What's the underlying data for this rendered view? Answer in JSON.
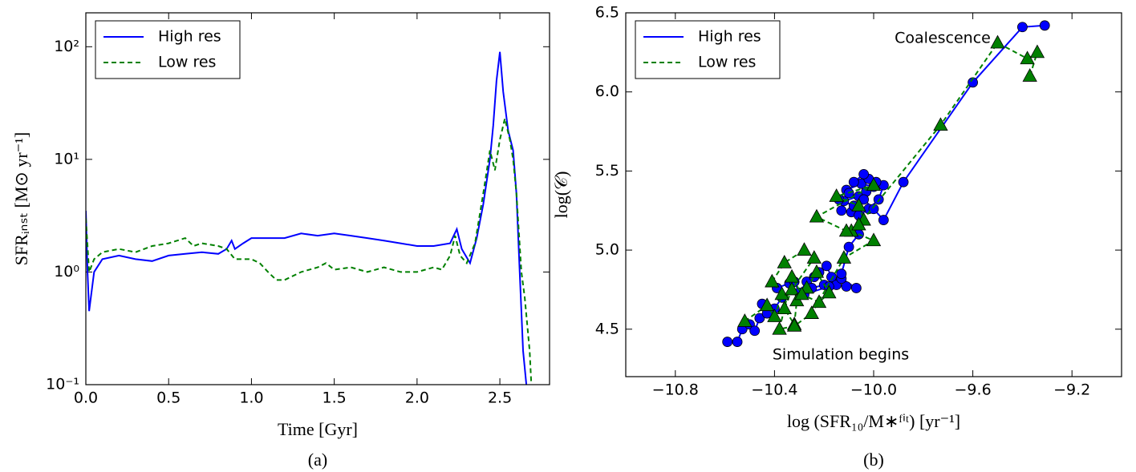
{
  "chart_data": [
    {
      "type": "line",
      "log_y": true,
      "legend": "upper left",
      "caption": "(a)",
      "xlabel": "Time [Gyr]",
      "ylabel": "SFRᵢₙₛₜ [M⊙ yr⁻¹]",
      "xlim": [
        0,
        2.8
      ],
      "ylim": [
        0.1,
        200
      ],
      "xticks": [
        {
          "value": 0,
          "label": "0.0"
        },
        0.5,
        {
          "value": 1,
          "label": "1.0"
        },
        1.5,
        {
          "value": 2,
          "label": "2.0"
        },
        2.5
      ],
      "yticks": [
        {
          "value": 0.1,
          "label": "10⁻¹"
        },
        {
          "value": 1,
          "label": "10⁰"
        },
        {
          "value": 10,
          "label": "10¹"
        },
        {
          "value": 100,
          "label": "10²"
        }
      ],
      "series": [
        {
          "name": "High res",
          "color": "#0000ff",
          "dash": false,
          "x": [
            0.0,
            0.01,
            0.02,
            0.05,
            0.1,
            0.2,
            0.3,
            0.4,
            0.5,
            0.6,
            0.7,
            0.8,
            0.85,
            0.88,
            0.9,
            0.95,
            1.0,
            1.1,
            1.2,
            1.3,
            1.4,
            1.5,
            1.6,
            1.7,
            1.8,
            1.9,
            2.0,
            2.1,
            2.2,
            2.24,
            2.27,
            2.32,
            2.36,
            2.4,
            2.44,
            2.46,
            2.48,
            2.5,
            2.52,
            2.55,
            2.58,
            2.6,
            2.62,
            2.64,
            2.66
          ],
          "values": [
            3.5,
            1.0,
            0.45,
            1.0,
            1.3,
            1.4,
            1.3,
            1.25,
            1.4,
            1.45,
            1.5,
            1.45,
            1.6,
            1.9,
            1.6,
            1.8,
            2.0,
            2.0,
            2.0,
            2.2,
            2.1,
            2.2,
            2.1,
            2.0,
            1.9,
            1.8,
            1.7,
            1.7,
            1.8,
            2.4,
            1.6,
            1.2,
            2.0,
            4.0,
            10,
            20,
            50,
            90,
            40,
            18,
            12,
            5,
            1.0,
            0.2,
            0.1
          ]
        },
        {
          "name": "Low res",
          "color": "#008000",
          "dash": true,
          "x": [
            0.0,
            0.02,
            0.05,
            0.1,
            0.2,
            0.3,
            0.4,
            0.5,
            0.6,
            0.65,
            0.7,
            0.8,
            0.85,
            0.9,
            1.0,
            1.05,
            1.1,
            1.15,
            1.2,
            1.3,
            1.4,
            1.45,
            1.5,
            1.6,
            1.7,
            1.8,
            1.9,
            2.0,
            2.1,
            2.15,
            2.2,
            2.23,
            2.26,
            2.3,
            2.35,
            2.4,
            2.44,
            2.47,
            2.5,
            2.53,
            2.56,
            2.58,
            2.6,
            2.63,
            2.65,
            2.68,
            2.69
          ],
          "values": [
            3.0,
            1.0,
            1.3,
            1.5,
            1.6,
            1.5,
            1.7,
            1.8,
            2.0,
            1.7,
            1.8,
            1.7,
            1.6,
            1.3,
            1.3,
            1.2,
            1.0,
            0.85,
            0.85,
            1.0,
            1.1,
            1.2,
            1.05,
            1.1,
            1.0,
            1.1,
            1.0,
            1.0,
            1.1,
            1.05,
            1.4,
            2.1,
            1.4,
            1.2,
            1.8,
            5,
            12,
            8,
            15,
            23,
            15,
            10,
            5,
            1.0,
            0.6,
            0.2,
            0.1
          ]
        }
      ]
    },
    {
      "type": "line",
      "log_y": false,
      "legend": "upper left",
      "caption": "(b)",
      "xlabel": "log (SFR₁₀/M∗ᶠⁱᵗ) [yr⁻¹]",
      "ylabel": "log(𝒞)",
      "annotations": [
        "Coalescence",
        "Simulation begins"
      ],
      "xlim": [
        -11.0,
        -9.0
      ],
      "ylim": [
        4.2,
        6.5
      ],
      "xticks": [
        {
          "value": -10.8,
          "label": "−10.8"
        },
        {
          "value": -10.4,
          "label": "−10.4"
        },
        {
          "value": -10.0,
          "label": "−10.0"
        },
        {
          "value": -9.6,
          "label": "−9.6"
        },
        {
          "value": -9.2,
          "label": "−9.2"
        }
      ],
      "yticks": [
        4.5,
        {
          "value": 5,
          "label": "5.0"
        },
        5.5,
        {
          "value": 6,
          "label": "6.0"
        },
        6.5
      ],
      "series": [
        {
          "name": "High res",
          "color": "#0000ff",
          "dash": false,
          "marker": "circle",
          "x": [
            -10.59,
            -10.55,
            -10.53,
            -10.5,
            -10.48,
            -10.46,
            -10.43,
            -10.45,
            -10.4,
            -10.37,
            -10.39,
            -10.34,
            -10.32,
            -10.3,
            -10.27,
            -10.24,
            -10.22,
            -10.19,
            -10.17,
            -10.15,
            -10.11,
            -10.07,
            -10.13,
            -10.2,
            -10.25,
            -10.28,
            -10.18,
            -10.13,
            -10.1,
            -10.06,
            -10.05,
            -10.09,
            -10.13,
            -10.12,
            -10.06,
            -10.03,
            -10.0,
            -10.05,
            -10.11,
            -10.14,
            -10.08,
            -10.06,
            -10.02,
            -9.98,
            -9.96,
            -9.99,
            -10.02,
            -10.04,
            -10.08,
            -10.1,
            -10.04,
            -10.0,
            -9.96,
            -9.88,
            -9.6,
            -9.4,
            -9.31
          ],
          "values": [
            4.42,
            4.42,
            4.5,
            4.53,
            4.49,
            4.57,
            4.6,
            4.66,
            4.63,
            4.7,
            4.76,
            4.79,
            4.8,
            4.73,
            4.8,
            4.83,
            4.86,
            4.9,
            4.83,
            4.78,
            4.77,
            4.76,
            4.82,
            4.78,
            4.76,
            4.72,
            4.77,
            4.85,
            5.02,
            5.1,
            5.2,
            5.24,
            5.25,
            5.31,
            5.34,
            5.37,
            5.4,
            5.42,
            5.38,
            5.32,
            5.28,
            5.22,
            5.26,
            5.32,
            5.41,
            5.43,
            5.45,
            5.48,
            5.43,
            5.36,
            5.32,
            5.26,
            5.19,
            5.43,
            6.06,
            6.41,
            6.42
          ]
        },
        {
          "name": "Low res",
          "color": "#008000",
          "dash": true,
          "marker": "triangle",
          "x": [
            -10.52,
            -10.43,
            -10.4,
            -10.37,
            -10.41,
            -10.36,
            -10.28,
            -10.24,
            -10.33,
            -10.36,
            -10.32,
            -10.31,
            -10.27,
            -10.23,
            -10.18,
            -10.22,
            -10.29,
            -10.33,
            -10.38,
            -10.32,
            -10.25,
            -10.12,
            -10.0,
            -10.09,
            -10.04,
            -10.06,
            -10.15,
            -10.0,
            -10.23,
            -10.11,
            -10.06,
            -9.73,
            -9.5,
            -9.38,
            -9.34,
            -9.37
          ],
          "values": [
            4.55,
            4.65,
            4.58,
            4.72,
            4.8,
            4.92,
            5.0,
            4.95,
            4.75,
            4.63,
            4.53,
            4.68,
            4.76,
            4.86,
            4.73,
            4.67,
            4.72,
            4.83,
            4.5,
            4.52,
            4.6,
            4.95,
            5.06,
            5.12,
            5.19,
            5.28,
            5.34,
            5.41,
            5.21,
            5.12,
            5.16,
            5.79,
            6.31,
            6.21,
            6.25,
            6.1
          ]
        }
      ]
    }
  ]
}
